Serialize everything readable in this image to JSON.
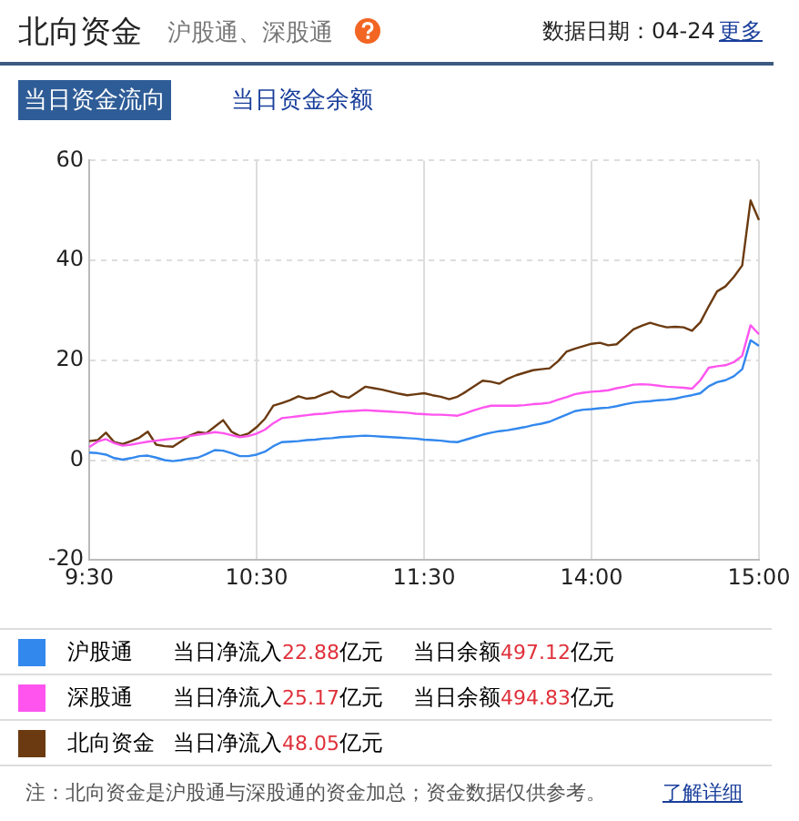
{
  "chart_data": {
    "type": "line",
    "title": "北向资金",
    "subtitle": "沪股通、深股通",
    "annotations": [
      "数据日期：04-24",
      "更多",
      "当日资金流向",
      "当日资金余额",
      "当日净流入22.88亿元",
      "当日余额497.12亿元",
      "当日净流入25.17亿元",
      "当日余额494.83亿元",
      "当日净流入48.05亿元",
      "注：北向资金是沪股通与深股通的资金加总；资金数据仅供参考。",
      "了解详细"
    ],
    "categories": [
      "9:30",
      null,
      null,
      null,
      null,
      null,
      null,
      null,
      null,
      null,
      null,
      null,
      null,
      null,
      null,
      null,
      null,
      null,
      null,
      null,
      "10:30",
      null,
      null,
      null,
      null,
      null,
      null,
      null,
      null,
      null,
      null,
      null,
      null,
      null,
      null,
      null,
      null,
      null,
      null,
      null,
      "11:30",
      null,
      null,
      null,
      null,
      null,
      null,
      null,
      null,
      null,
      null,
      null,
      null,
      null,
      null,
      null,
      null,
      null,
      null,
      null,
      "14:00",
      null,
      null,
      null,
      null,
      null,
      null,
      null,
      null,
      null,
      null,
      null,
      null,
      null,
      null,
      null,
      null,
      null,
      null,
      null,
      "15:00"
    ],
    "ylim": [
      -20,
      60
    ],
    "yticks": [
      -20,
      0,
      20,
      40,
      60
    ],
    "grid": true,
    "legend": "bottom",
    "marker": "none",
    "series": [
      {
        "name": "沪股通",
        "color": "#3388ee",
        "values": [
          1.5,
          1.4,
          1.1,
          0.4,
          0.1,
          0.4,
          0.8,
          0.9,
          0.5,
          0,
          -0.2,
          0,
          0.3,
          0.5,
          1.2,
          2.0,
          1.9,
          1.4,
          0.8,
          0.8,
          1.1,
          1.7,
          2.8,
          3.6,
          3.7,
          3.8,
          4.0,
          4.1,
          4.3,
          4.4,
          4.6,
          4.7,
          4.8,
          4.9,
          4.8,
          4.7,
          4.6,
          4.5,
          4.4,
          4.3,
          4.1,
          4.0,
          3.9,
          3.7,
          3.6,
          4.1,
          4.6,
          5.1,
          5.5,
          5.8,
          6.0,
          6.3,
          6.6,
          7.0,
          7.3,
          7.7,
          8.4,
          9.1,
          9.8,
          10.1,
          10.2,
          10.4,
          10.5,
          10.8,
          11.2,
          11.5,
          11.7,
          11.8,
          12.0,
          12.1,
          12.3,
          12.7,
          13.0,
          13.4,
          14.8,
          15.6,
          16.0,
          16.8,
          18.2,
          24.0,
          22.9
        ]
      },
      {
        "name": "深股通",
        "color": "#ff55ee",
        "values": [
          2.6,
          3.7,
          4.2,
          3.4,
          2.9,
          3.1,
          3.4,
          3.7,
          3.9,
          4.1,
          4.3,
          4.5,
          4.8,
          5.1,
          5.3,
          5.6,
          5.4,
          5.0,
          4.6,
          4.8,
          5.3,
          6.1,
          7.4,
          8.4,
          8.6,
          8.8,
          9.0,
          9.2,
          9.3,
          9.5,
          9.7,
          9.8,
          9.9,
          10,
          9.9,
          9.8,
          9.7,
          9.6,
          9.5,
          9.3,
          9.2,
          9.1,
          9.1,
          9.0,
          8.9,
          9.4,
          10.0,
          10.5,
          10.9,
          10.9,
          10.9,
          10.9,
          11.0,
          11.2,
          11.3,
          11.5,
          12.1,
          12.6,
          13.2,
          13.5,
          13.7,
          13.8,
          14.0,
          14.4,
          14.7,
          15.1,
          15.2,
          15.1,
          14.9,
          14.7,
          14.6,
          14.5,
          14.3,
          16.0,
          18.5,
          18.8,
          19.0,
          19.6,
          20.9,
          27.0,
          25.2
        ]
      },
      {
        "name": "北向资金",
        "color": "#6b3a10",
        "values": [
          3.8,
          4.0,
          5.5,
          3.6,
          3.2,
          3.8,
          4.5,
          5.7,
          3.1,
          2.8,
          2.7,
          3.8,
          4.9,
          5.6,
          5.4,
          6.7,
          8.0,
          5.7,
          4.8,
          5.3,
          6.6,
          8.3,
          10.9,
          11.4,
          12.0,
          12.8,
          12.3,
          12.5,
          13.2,
          13.8,
          12.8,
          12.5,
          13.6,
          14.7,
          14.4,
          14.1,
          13.7,
          13.3,
          13.0,
          13.2,
          13.4,
          13.0,
          12.7,
          12.2,
          12.7,
          13.7,
          14.8,
          15.9,
          15.7,
          15.3,
          16.3,
          17.0,
          17.5,
          18.0,
          18.2,
          18.4,
          19.8,
          21.7,
          22.3,
          22.8,
          23.3,
          23.5,
          23.0,
          23.2,
          24.7,
          26.2,
          26.9,
          27.5,
          27.0,
          26.6,
          26.7,
          26.6,
          25.9,
          27.6,
          30.8,
          33.8,
          34.8,
          36.7,
          39.0,
          52.0,
          48.1
        ]
      }
    ]
  }
}
